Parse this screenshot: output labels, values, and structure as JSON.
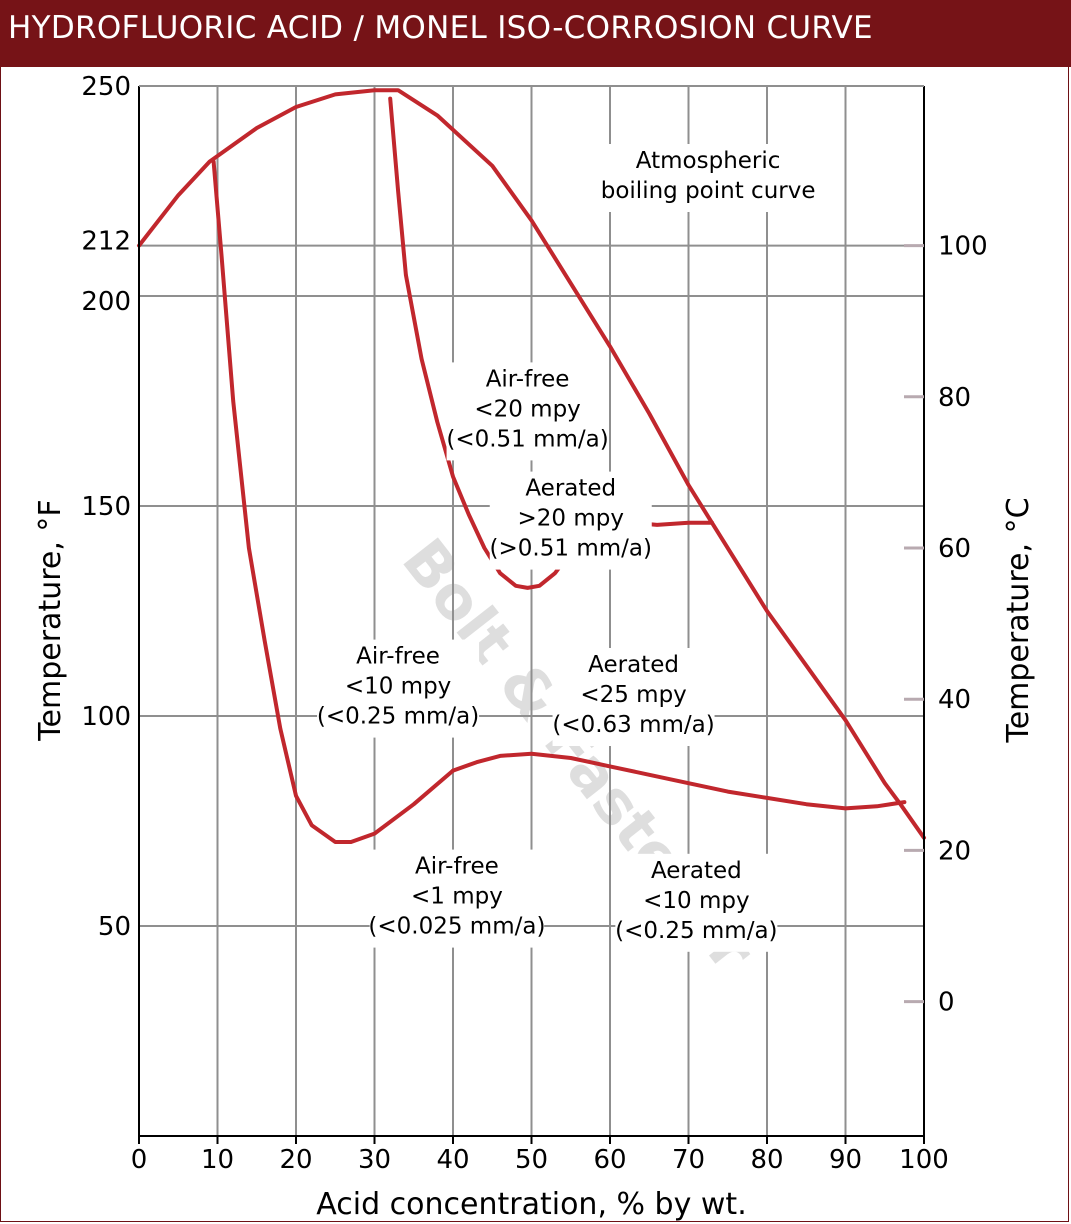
{
  "title": "HYDROFLUORIC ACID / MONEL ISO-CORROSION CURVE",
  "colors": {
    "title_bar": "#761317",
    "curve": "#c1272d",
    "grid": "#8f8f8f",
    "watermark": "#b8b8b8"
  },
  "watermark": {
    "text": "Bolt & Fastener"
  },
  "chart_data": {
    "type": "line",
    "title": "HYDROFLUORIC ACID / MONEL ISO-CORROSION CURVE",
    "xlabel": "Acid concentration, % by wt.",
    "ylabel": "Temperature, °F",
    "ylabel_right": "Temperature, °C",
    "xlim": [
      0,
      100
    ],
    "ylim": [
      0,
      250
    ],
    "grid": true,
    "x_ticks": [
      0,
      10,
      20,
      30,
      40,
      50,
      60,
      70,
      80,
      90,
      100
    ],
    "y_ticks": [
      50,
      100,
      150,
      200,
      212,
      250
    ],
    "y_ticks_right": [
      0,
      20,
      40,
      60,
      80,
      100
    ],
    "series": [
      {
        "name": "Atmospheric boiling point curve",
        "x": [
          0,
          5,
          9,
          15,
          20,
          25,
          30,
          33,
          38,
          45,
          50,
          55,
          60,
          65,
          70,
          73,
          80,
          85,
          90,
          95,
          97,
          100
        ],
        "y": [
          212,
          224,
          232,
          240,
          245,
          248,
          249,
          249,
          243,
          231,
          218,
          203,
          188,
          172,
          155,
          146,
          125,
          112,
          99,
          84,
          79,
          71
        ]
      },
      {
        "name": "1 mpy (air-free)",
        "x": [
          9.5,
          10.5,
          12,
          14,
          16,
          18,
          20,
          22,
          25,
          27,
          30,
          35,
          40
        ],
        "y": [
          232,
          210,
          175,
          140,
          118,
          97,
          81,
          74,
          70,
          70,
          72,
          79,
          87
        ]
      },
      {
        "name": "Aerated 10 mpy",
        "x": [
          40,
          43,
          46,
          50,
          55,
          60,
          65,
          70,
          75,
          80,
          85,
          90,
          94,
          97.5
        ],
        "y": [
          87,
          89,
          90.5,
          91,
          90,
          88,
          86,
          84,
          82,
          80.5,
          79,
          78,
          78.5,
          79.5
        ]
      },
      {
        "name": "20 mpy (air-free)",
        "x": [
          32,
          33,
          34,
          36,
          38,
          40,
          42,
          44,
          46,
          48,
          49.5,
          51,
          53,
          55
        ],
        "y": [
          247,
          225,
          205,
          185,
          170,
          157,
          148,
          140,
          134,
          131,
          130.5,
          131,
          134,
          139
        ]
      },
      {
        "name": "Aerated 20 mpy",
        "x": [
          55,
          57,
          60,
          63,
          66,
          70,
          73
        ],
        "y": [
          139,
          144,
          145.5,
          146,
          145.5,
          146,
          146
        ]
      }
    ],
    "annotations": [
      {
        "lines": [
          "Atmospheric",
          "boiling point curve"
        ]
      },
      {
        "lines": [
          "Air-free",
          "<20 mpy",
          "(<0.51 mm/a)"
        ]
      },
      {
        "lines": [
          "Aerated",
          ">20 mpy",
          "(>0.51 mm/a)"
        ]
      },
      {
        "lines": [
          "Air-free",
          "<10 mpy",
          "(<0.25 mm/a)"
        ]
      },
      {
        "lines": [
          "Aerated",
          "<25 mpy",
          "(<0.63 mm/a)"
        ]
      },
      {
        "lines": [
          "Air-free",
          "<1 mpy",
          "(<0.025 mm/a)"
        ]
      },
      {
        "lines": [
          "Aerated",
          "<10 mpy",
          "(<0.25 mm/a)"
        ]
      }
    ]
  }
}
